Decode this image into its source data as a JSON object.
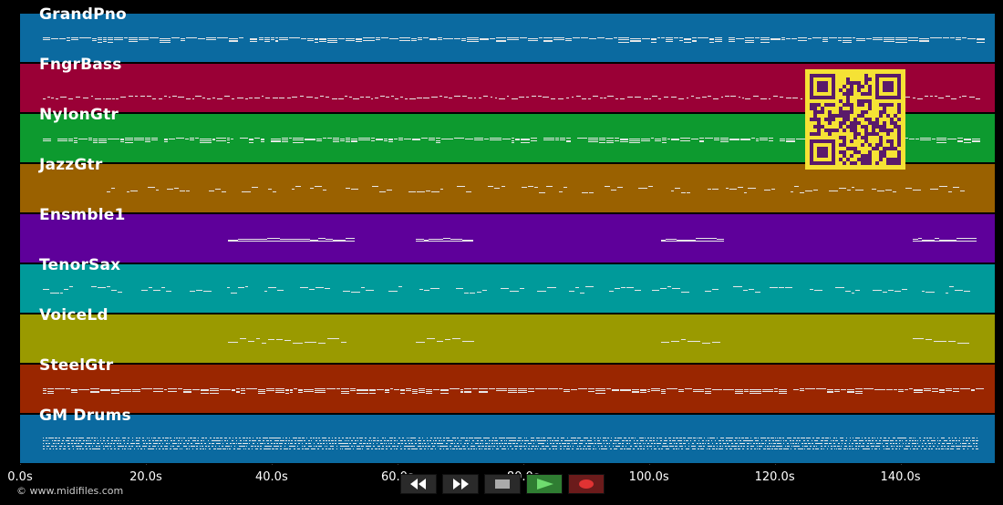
{
  "tracks": [
    {
      "name": "GrandPno",
      "color": "#0b6aa0",
      "pattern": "dense"
    },
    {
      "name": "FngrBass",
      "color": "#9a0036",
      "pattern": "bass"
    },
    {
      "name": "NylonGtr",
      "color": "#0d9a2f",
      "pattern": "dense"
    },
    {
      "name": "JazzGtr",
      "color": "#9a6100",
      "pattern": "sparse"
    },
    {
      "name": "Ensmble1",
      "color": "#5e009a",
      "pattern": "blocks"
    },
    {
      "name": "TenorSax",
      "color": "#009a9a",
      "pattern": "sparse"
    },
    {
      "name": "VoiceLd",
      "color": "#9a9a00",
      "pattern": "phrases"
    },
    {
      "name": "SteelGtr",
      "color": "#9a2600",
      "pattern": "dense"
    },
    {
      "name": "GM Drums",
      "color": "#0b6aa0",
      "pattern": "drums"
    }
  ],
  "timeline": {
    "tick_labels": [
      "0.0s",
      "20.0s",
      "40.0s",
      "60.0s",
      "80.0s",
      "100.0s",
      "120.0s",
      "140.0s"
    ],
    "tick_values": [
      0,
      20,
      40,
      60,
      80,
      100,
      120,
      140
    ],
    "max_seconds": 155
  },
  "copyright": "© www.midifiles.com",
  "transport": {
    "rewind_icon": "rewind-icon",
    "forward_icon": "fast-forward-icon",
    "stop_icon": "stop-icon",
    "play_icon": "play-icon",
    "record_icon": "record-icon"
  },
  "overlay": {
    "qr_icon": "qr-code-icon",
    "qr_color": "#5a1a6b"
  }
}
